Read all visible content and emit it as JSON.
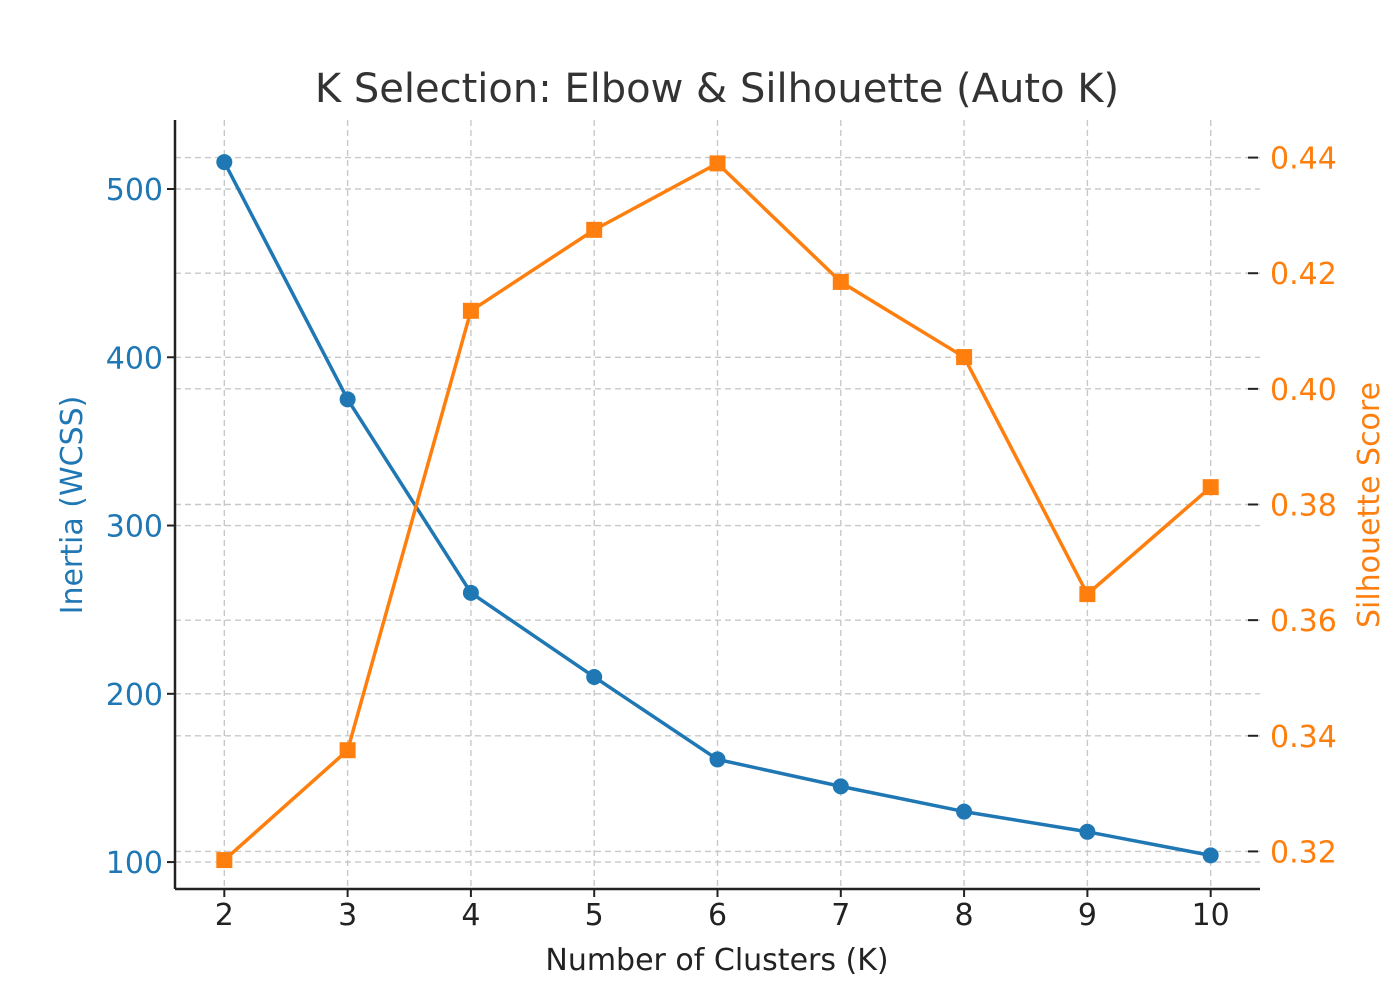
{
  "chart_data": {
    "type": "line",
    "title": "K Selection: Elbow & Silhouette (Auto K)",
    "xlabel": "Number of Clusters (K)",
    "ylabel_left": "Inertia (WCSS)",
    "ylabel_right": "Silhouette Score",
    "x": [
      2,
      3,
      4,
      5,
      6,
      7,
      8,
      9,
      10
    ],
    "series": [
      {
        "axis": "left",
        "marker": "circle",
        "color": "#1f77b4",
        "values": [
          516,
          375,
          260,
          210,
          161,
          145,
          130,
          118,
          104
        ]
      },
      {
        "axis": "right",
        "marker": "square",
        "color": "#ff7f0e",
        "values": [
          0.3185,
          0.3375,
          0.4135,
          0.4275,
          0.439,
          0.4185,
          0.4055,
          0.3645,
          0.383
        ]
      }
    ],
    "xlim": [
      1.6,
      10.4
    ],
    "ylim_left": [
      84,
      541
    ],
    "ylim_right": [
      0.3135,
      0.4465
    ],
    "xticks": [
      "2",
      "3",
      "4",
      "5",
      "6",
      "7",
      "8",
      "9",
      "10"
    ],
    "yticks_left": [
      "100",
      "200",
      "300",
      "400",
      "500"
    ],
    "yticks_right": [
      "0.32",
      "0.34",
      "0.36",
      "0.38",
      "0.40",
      "0.42",
      "0.44"
    ],
    "grid": true,
    "colors": {
      "left_axis": "#1f77b4",
      "right_axis": "#ff7f0e",
      "text": "#222222"
    }
  }
}
